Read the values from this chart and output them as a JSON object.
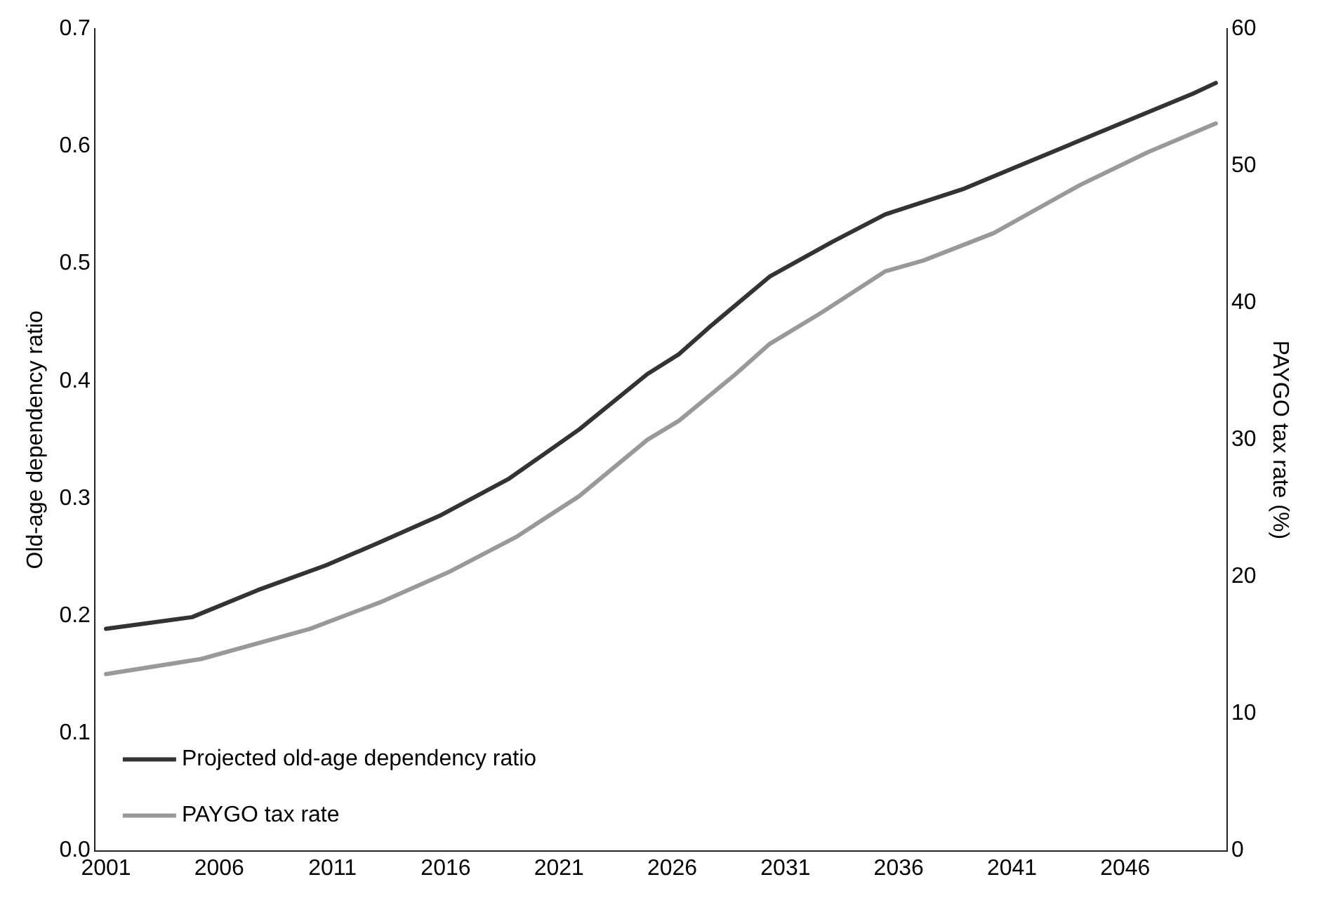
{
  "chart_data": {
    "type": "line",
    "ylabel": "Old-age dependency ratio",
    "y2label": "PAYGO tax rate (%)",
    "xlim": [
      2000.5,
      2050.5
    ],
    "xticks": [
      2001,
      2006,
      2011,
      2016,
      2021,
      2026,
      2031,
      2036,
      2041,
      2046
    ],
    "ylim": [
      0,
      0.7
    ],
    "yticks": [
      {
        "value": 0,
        "label": "0.0"
      },
      0.1,
      0.2,
      0.3,
      0.4,
      0.5,
      0.6,
      0.7
    ],
    "y2lim": [
      0,
      60
    ],
    "y2ticks": [
      0,
      10,
      20,
      30,
      40,
      50,
      60
    ],
    "grid": false,
    "legend": "bottom left",
    "line_style": "solid",
    "marker": "none",
    "series": [
      {
        "name": "Projected old-age dependency ratio",
        "color": "#333333",
        "x": [
          2001,
          2004.8,
          2007.7,
          2010.7,
          2013,
          2015.8,
          2018.8,
          2021.9,
          2024.9,
          2026.3,
          2027.7,
          2030.3,
          2033.1,
          2035.4,
          2038.9,
          2041,
          2044,
          2046,
          2049,
          2050
        ],
        "values": [
          0.189,
          0.199,
          0.222,
          0.243,
          0.262,
          0.286,
          0.317,
          0.359,
          0.406,
          0.423,
          0.447,
          0.489,
          0.519,
          0.542,
          0.564,
          0.581,
          0.605,
          0.621,
          0.645,
          0.654
        ]
      },
      {
        "name": "PAYGO tax rate",
        "color": "#999999",
        "axis": "y2",
        "x": [
          2001,
          2005.2,
          2010,
          2013.2,
          2016.2,
          2019.1,
          2021.9,
          2024.9,
          2026.3,
          2028.8,
          2030.3,
          2032.6,
          2035.4,
          2037.1,
          2040.2,
          2044,
          2047,
          2050
        ],
        "values": [
          12.9,
          14.0,
          16.2,
          18.2,
          20.4,
          22.9,
          25.9,
          30.0,
          31.4,
          34.8,
          37.0,
          39.3,
          42.3,
          43.1,
          45.1,
          48.6,
          51.0,
          53.1
        ]
      }
    ]
  }
}
